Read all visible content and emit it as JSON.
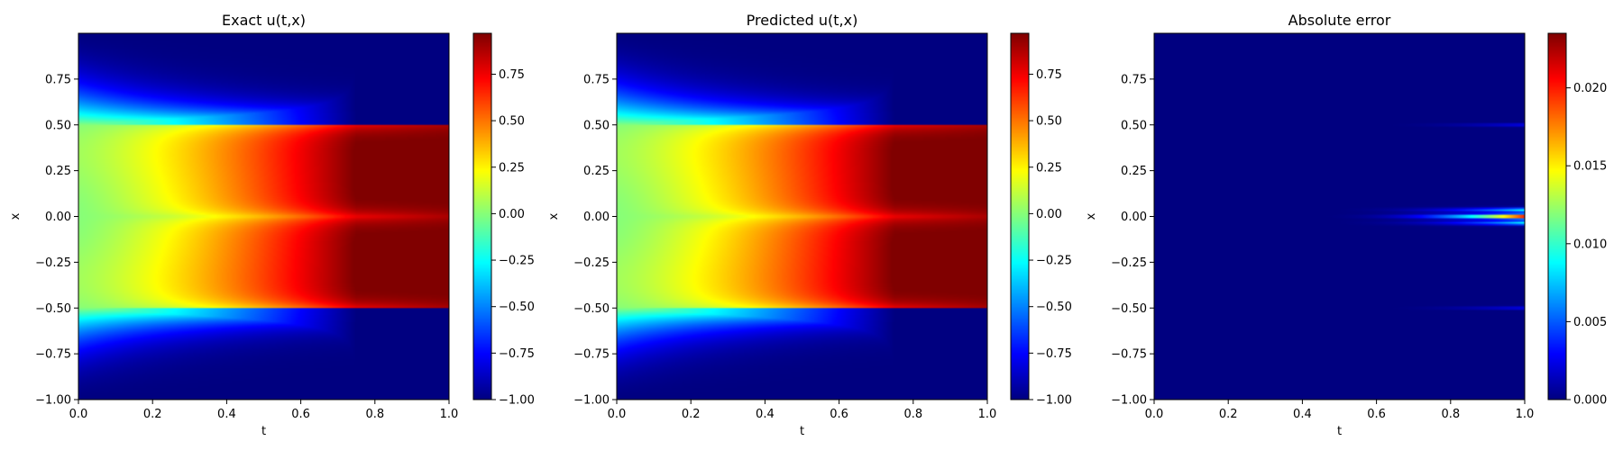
{
  "chart_data": [
    {
      "type": "heatmap",
      "title": "Exact u(t,x)",
      "xlabel": "t",
      "ylabel": "x",
      "xlim": [
        0.0,
        1.0
      ],
      "ylim": [
        -1.0,
        1.0
      ],
      "xticks": [
        "0.0",
        "0.2",
        "0.4",
        "0.6",
        "0.8",
        "1.0"
      ],
      "yticks": [
        "−1.00",
        "−0.75",
        "−0.50",
        "−0.25",
        "0.00",
        "0.25",
        "0.50",
        "0.75"
      ],
      "colormap": "jet",
      "colorbar": {
        "range": [
          -1.0,
          0.97
        ],
        "ticks": [
          "−1.00",
          "−0.75",
          "−0.50",
          "−0.25",
          "0.00",
          "0.25",
          "0.50",
          "0.75"
        ]
      },
      "field": "allen-cahn-solution"
    },
    {
      "type": "heatmap",
      "title": "Predicted u(t,x)",
      "xlabel": "t",
      "ylabel": "x",
      "xlim": [
        0.0,
        1.0
      ],
      "ylim": [
        -1.0,
        1.0
      ],
      "xticks": [
        "0.0",
        "0.2",
        "0.4",
        "0.6",
        "0.8",
        "1.0"
      ],
      "yticks": [
        "−1.00",
        "−0.75",
        "−0.50",
        "−0.25",
        "0.00",
        "0.25",
        "0.50",
        "0.75"
      ],
      "colormap": "jet",
      "colorbar": {
        "range": [
          -1.0,
          0.97
        ],
        "ticks": [
          "−1.00",
          "−0.75",
          "−0.50",
          "−0.25",
          "0.00",
          "0.25",
          "0.50",
          "0.75"
        ]
      },
      "field": "allen-cahn-solution"
    },
    {
      "type": "heatmap",
      "title": "Absolute error",
      "xlabel": "t",
      "ylabel": "x",
      "xlim": [
        0.0,
        1.0
      ],
      "ylim": [
        -1.0,
        1.0
      ],
      "xticks": [
        "0.0",
        "0.2",
        "0.4",
        "0.6",
        "0.8",
        "1.0"
      ],
      "yticks": [
        "−1.00",
        "−0.75",
        "−0.50",
        "−0.25",
        "0.00",
        "0.25",
        "0.50",
        "0.75"
      ],
      "colormap": "jet",
      "colorbar": {
        "range": [
          0.0,
          0.0235
        ],
        "ticks": [
          "0.000",
          "0.005",
          "0.010",
          "0.015",
          "0.020"
        ]
      },
      "field": "absolute-error",
      "error_peak": 0.0235
    }
  ]
}
